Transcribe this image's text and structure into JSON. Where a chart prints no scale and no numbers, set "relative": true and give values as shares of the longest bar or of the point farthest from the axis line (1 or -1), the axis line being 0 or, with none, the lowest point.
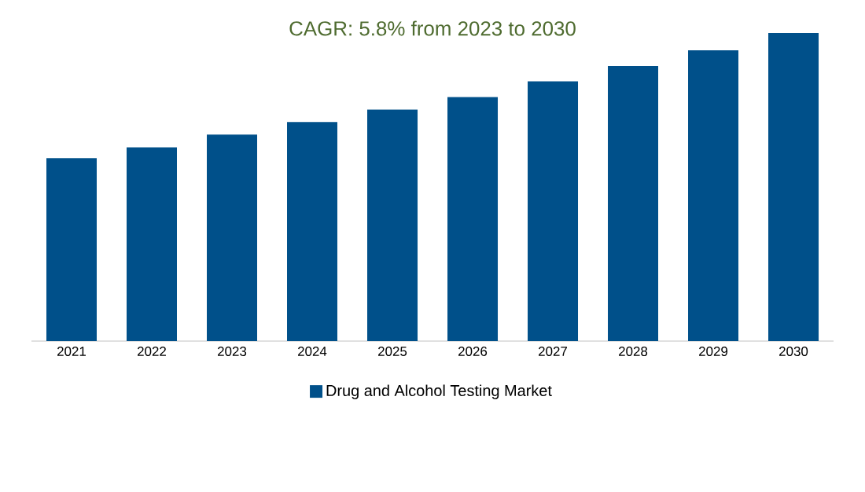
{
  "chart_data": {
    "type": "bar",
    "title": "CAGR: 5.8% from 2023 to 2030",
    "categories": [
      "2021",
      "2022",
      "2023",
      "2024",
      "2025",
      "2026",
      "2027",
      "2028",
      "2029",
      "2030"
    ],
    "relative": true,
    "series": [
      {
        "name": "Drug and Alcohol Testing Market",
        "color": "#00508a",
        "values": [
          0.594,
          0.629,
          0.67,
          0.711,
          0.751,
          0.792,
          0.843,
          0.893,
          0.944,
          1
        ]
      }
    ],
    "legend": "bottom"
  }
}
